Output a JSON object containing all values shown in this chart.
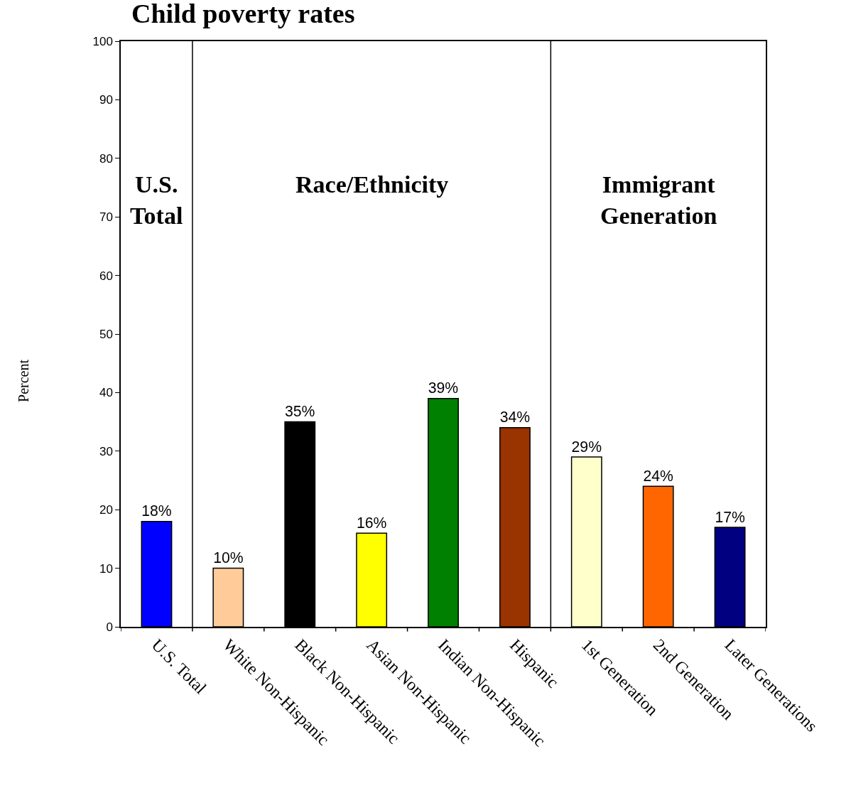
{
  "chart_data": {
    "type": "bar",
    "title": "Child poverty rates",
    "ylabel": "Percent",
    "categories": [
      "U.S. Total",
      "White Non-Hispanic",
      "Black Non-Hispanic",
      "Asian Non-Hispanic",
      "Indian Non-Hispanic",
      "Hispanic",
      "1st Generation",
      "2nd Generation",
      "Later Generations"
    ],
    "values": [
      18,
      10,
      35,
      16,
      39,
      34,
      29,
      24,
      17
    ],
    "colors": [
      "#0000ff",
      "#ffcc99",
      "#000000",
      "#ffff00",
      "#008000",
      "#993300",
      "#ffffcc",
      "#ff6600",
      "#000080"
    ],
    "value_labels": [
      "18%",
      "10%",
      "35%",
      "16%",
      "39%",
      "34%",
      "29%",
      "24%",
      "17%"
    ],
    "ylim": [
      0,
      100
    ],
    "yticks": [
      0,
      10,
      20,
      30,
      40,
      50,
      60,
      70,
      80,
      90,
      100
    ],
    "annotations": [
      "U.S.\nTotal",
      "Race/Ethnicity",
      "Immigrant\nGeneration"
    ]
  }
}
